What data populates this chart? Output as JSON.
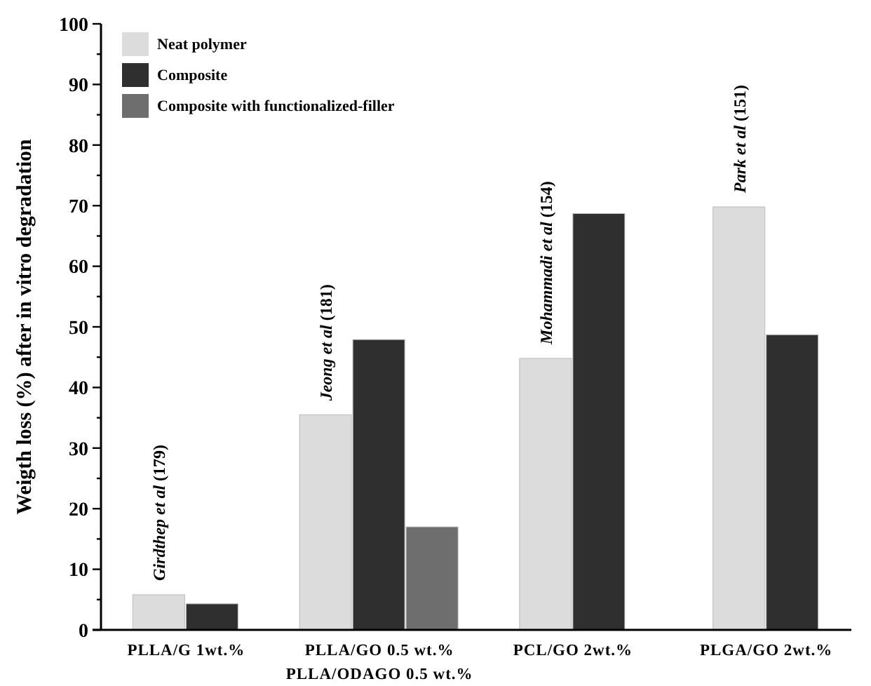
{
  "chart_data": {
    "type": "bar",
    "ylabel": "Weigth loss (%) after in vitro degradation",
    "categories": [
      "PLLA/G 1wt.%",
      "PLLA/GO 0.5 wt.%\nPLLA/ODAGO 0.5 wt.%",
      "PCL/GO 2wt.%",
      "PLGA/GO 2wt.%"
    ],
    "series": [
      {
        "name": "Neat polymer",
        "color": "#dcdcdc",
        "values": [
          5.8,
          35.5,
          44.8,
          69.8
        ]
      },
      {
        "name": "Composite",
        "color": "#2f2f2f",
        "values": [
          4.3,
          47.9,
          68.7,
          48.7
        ]
      },
      {
        "name": "Composite with functionalized-filler",
        "color": "#6e6e6e",
        "values": [
          null,
          17,
          null,
          null
        ]
      }
    ],
    "ylim": [
      0,
      100
    ],
    "yticks": [
      0,
      {
        "value": 5,
        "label": null
      },
      10,
      {
        "value": 15,
        "label": null
      },
      20,
      {
        "value": 25,
        "label": null
      },
      30,
      {
        "value": 35,
        "label": null
      },
      40,
      {
        "value": 45,
        "label": null
      },
      50,
      {
        "value": 55,
        "label": null
      },
      60,
      {
        "value": 65,
        "label": null
      },
      70,
      {
        "value": 75,
        "label": null
      },
      80,
      {
        "value": 85,
        "label": null
      },
      90,
      {
        "value": 95,
        "label": null
      },
      100
    ],
    "annotations": [
      "Girdthep et al (179)",
      "Jeong et al (181)",
      "Mohammadi et al (154)",
      "Park et al (151)"
    ],
    "legend": "top left",
    "grid": false
  }
}
